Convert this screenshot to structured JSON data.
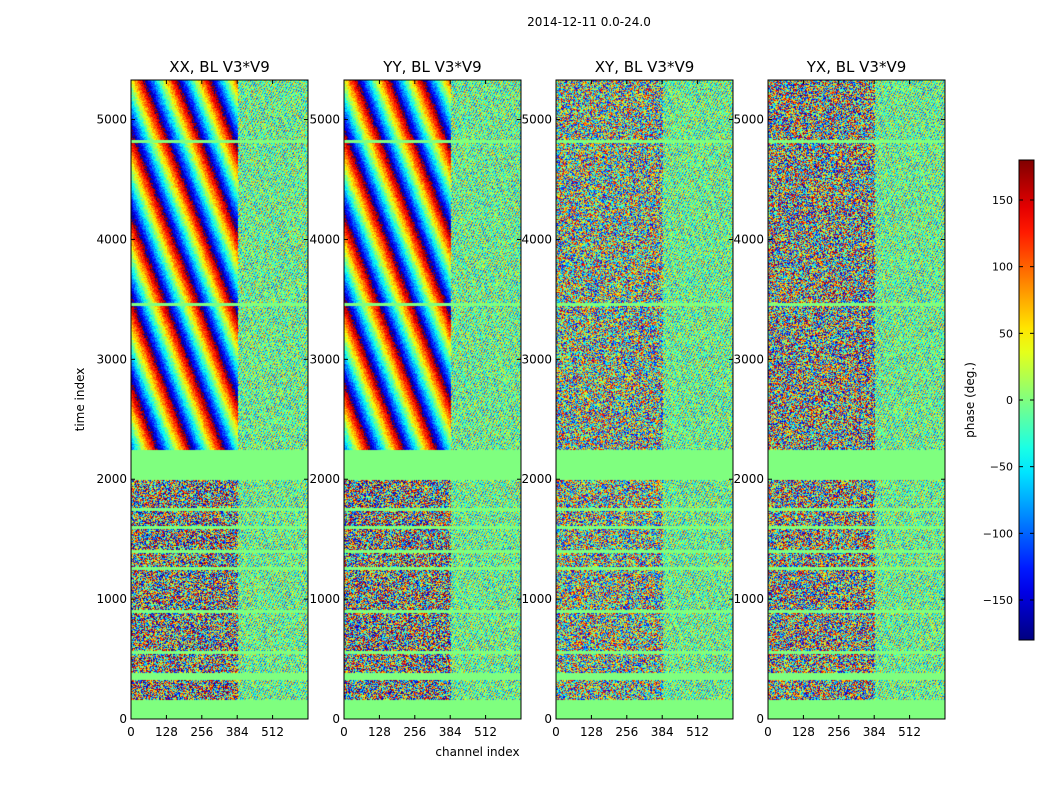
{
  "figure": {
    "suptitle": "2014-12-11 0.0-24.0"
  },
  "chart_data": [
    {
      "type": "heatmap",
      "title": "XX, BL V3*V9",
      "xlabel": "",
      "ylabel": "time index",
      "xlim": [
        0,
        640
      ],
      "ylim": [
        0,
        5330
      ],
      "xticks": [
        0,
        128,
        256,
        384,
        512
      ],
      "yticks": [
        0,
        1000,
        2000,
        3000,
        4000,
        5000
      ],
      "pattern": "strong-fringes",
      "strong_amplitude": 0.9
    },
    {
      "type": "heatmap",
      "title": "YY, BL V3*V9",
      "xlabel": "channel index",
      "ylabel": "",
      "xlim": [
        0,
        640
      ],
      "ylim": [
        0,
        5330
      ],
      "xticks": [
        0,
        128,
        256,
        384,
        512
      ],
      "yticks": [
        0,
        1000,
        2000,
        3000,
        4000,
        5000
      ],
      "pattern": "strong-fringes",
      "strong_amplitude": 0.9
    },
    {
      "type": "heatmap",
      "title": "XY, BL V3*V9",
      "xlabel": "",
      "ylabel": "",
      "xlim": [
        0,
        640
      ],
      "ylim": [
        0,
        5330
      ],
      "xticks": [
        0,
        128,
        256,
        384,
        512
      ],
      "yticks": [
        0,
        1000,
        2000,
        3000,
        4000,
        5000
      ],
      "pattern": "noise",
      "strong_amplitude": 0.25
    },
    {
      "type": "heatmap",
      "title": "YX, BL V3*V9",
      "xlabel": "",
      "ylabel": "",
      "xlim": [
        0,
        640
      ],
      "ylim": [
        0,
        5330
      ],
      "xticks": [
        0,
        128,
        256,
        384,
        512
      ],
      "yticks": [
        0,
        1000,
        2000,
        3000,
        4000,
        5000
      ],
      "pattern": "noise",
      "strong_amplitude": 0.35
    }
  ],
  "colorbar": {
    "label": "phase (deg.)",
    "colormap": "jet",
    "range": [
      -180,
      180
    ],
    "ticks": [
      -150,
      -100,
      -50,
      0,
      50,
      100,
      150
    ],
    "tick_labels": [
      "−150",
      "−100",
      "−50",
      "0",
      "50",
      "100",
      "150"
    ]
  },
  "flagged_time_ranges": [
    [
      0,
      160
    ],
    [
      330,
      390
    ],
    [
      2000,
      2250
    ]
  ],
  "flagged_time_rows": [
    560,
    900,
    1260,
    1400,
    1600,
    1750,
    3460,
    4820
  ],
  "flagged_channel_start": 384,
  "colors": {
    "flagged": "#7fff7f",
    "frame": "#000000"
  }
}
